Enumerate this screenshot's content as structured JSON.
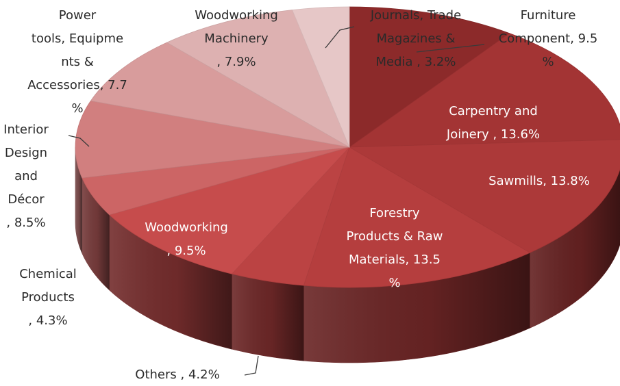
{
  "chart_data": {
    "type": "pie",
    "title": "",
    "legend": "none",
    "start_angle_deg": 0,
    "direction": "clockwise",
    "slices": [
      {
        "label": "Furniture Component",
        "value": 9.5,
        "display_label": [
          "Furniture",
          "Component, 9.5",
          "%"
        ],
        "color": "#8c2a2a",
        "text_color": "#2a2a2a"
      },
      {
        "label": "Carpentry and Joinery",
        "value": 13.6,
        "display_label": [
          "Carpentry and",
          "Joinery , 13.6%"
        ],
        "color": "#a33434",
        "text_color": "#ffffff"
      },
      {
        "label": "Sawmills",
        "value": 13.8,
        "display_label": [
          "Sawmills, 13.8%"
        ],
        "color": "#ac3939",
        "text_color": "#ffffff"
      },
      {
        "label": "Forestry Products & Raw Materials",
        "value": 13.5,
        "display_label": [
          "Forestry",
          "Products & Raw",
          "Materials, 13.5",
          "%"
        ],
        "color": "#b53e3e",
        "text_color": "#ffffff"
      },
      {
        "label": "Others",
        "value": 4.2,
        "display_label": [
          "Others , 4.2%"
        ],
        "color": "#bb4343",
        "text_color": "#2a2a2a"
      },
      {
        "label": "Woodworking",
        "value": 9.5,
        "display_label": [
          "Woodworking",
          ", 9.5%"
        ],
        "color": "#c64c4c",
        "text_color": "#ffffff"
      },
      {
        "label": "Chemical Products",
        "value": 4.3,
        "display_label": [
          "Chemical",
          "Products",
          ", 4.3%"
        ],
        "color": "#cc6565",
        "text_color": "#2a2a2a"
      },
      {
        "label": "Interior Design and Décor",
        "value": 8.5,
        "display_label": [
          "Interior",
          "Design",
          "and",
          "Décor",
          ", 8.5%"
        ],
        "color": "#d17f7f",
        "text_color": "#2a2a2a"
      },
      {
        "label": "Power tools, Equipments & Accessories",
        "value": 7.7,
        "display_label": [
          "Power",
          "tools, Equipme",
          "nts &",
          "Accessories, 7.7",
          "%"
        ],
        "color": "#d89c9c",
        "text_color": "#2a2a2a"
      },
      {
        "label": "Woodworking Machinery",
        "value": 7.9,
        "display_label": [
          "Woodworking",
          "Machinery",
          ", 7.9%"
        ],
        "color": "#ddb1b1",
        "text_color": "#2a2a2a"
      },
      {
        "label": "Journals, Trade Magazines & Media",
        "value": 3.2,
        "display_label": [
          "Journals, Trade",
          "Magazines &",
          "Media , 3.2%"
        ],
        "color": "#e6c7c7",
        "text_color": "#2a2a2a"
      }
    ]
  }
}
